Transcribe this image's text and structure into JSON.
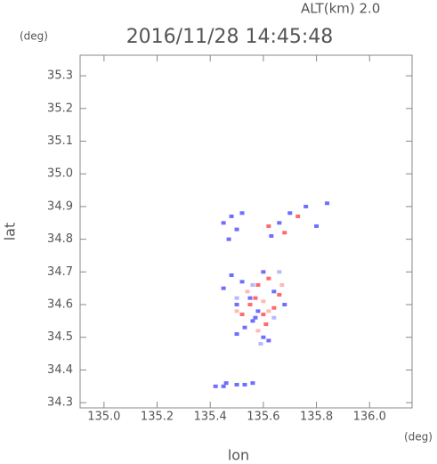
{
  "chart_data": {
    "type": "scatter",
    "title": "2016/11/28 14:45:48",
    "subtitle": "ALT(km) 2.0",
    "y_unit": "(deg)",
    "x_unit": "(deg)",
    "xlabel": "lon",
    "ylabel": "lat",
    "xlim": [
      134.91,
      136.16
    ],
    "ylim": [
      34.284,
      35.363
    ],
    "xticks": [
      {
        "value": 135.0,
        "label": "135.0"
      },
      135.2,
      135.4,
      135.6,
      135.8,
      {
        "value": 136.0,
        "label": "136.0"
      }
    ],
    "yticks": [
      34.3,
      34.4,
      34.5,
      34.6,
      34.7,
      34.8,
      34.9,
      {
        "value": 35.0,
        "label": "35.0"
      },
      35.1,
      35.2,
      35.3
    ],
    "series": [
      {
        "color": "#6f6fff",
        "x": [
          135.45,
          135.48,
          135.5,
          135.52,
          135.47,
          135.63,
          135.66,
          135.7,
          135.76,
          135.84,
          135.8,
          135.45,
          135.48,
          135.52,
          135.55,
          135.5,
          135.6,
          135.64,
          135.68,
          135.57,
          135.53,
          135.6,
          135.62,
          135.56,
          135.5,
          135.58,
          135.42,
          135.45,
          135.5,
          135.46,
          135.53,
          135.56
        ],
        "y": [
          34.85,
          34.87,
          34.83,
          34.88,
          34.8,
          34.81,
          34.85,
          34.88,
          34.9,
          34.91,
          34.84,
          34.65,
          34.69,
          34.67,
          34.62,
          34.6,
          34.7,
          34.64,
          34.6,
          34.56,
          34.53,
          34.5,
          34.49,
          34.55,
          34.51,
          34.58,
          34.35,
          34.35,
          34.355,
          34.36,
          34.355,
          34.36
        ]
      },
      {
        "color": "#ff6a6a",
        "x": [
          135.62,
          135.68,
          135.73,
          135.58,
          135.62,
          135.66,
          135.55,
          135.6,
          135.64,
          135.52,
          135.57,
          135.61
        ],
        "y": [
          34.84,
          34.82,
          34.87,
          34.66,
          34.68,
          34.63,
          34.6,
          34.57,
          34.59,
          34.57,
          34.62,
          34.54
        ]
      },
      {
        "color": "#ffb8b8",
        "x": [
          135.54,
          135.6,
          135.67,
          135.5,
          135.58,
          135.62
        ],
        "y": [
          34.64,
          34.61,
          34.66,
          34.58,
          34.52,
          34.58
        ]
      },
      {
        "color": "#b8b8ff",
        "x": [
          135.56,
          135.64,
          135.5,
          135.66,
          135.59
        ],
        "y": [
          34.66,
          34.56,
          34.62,
          34.7,
          34.48
        ]
      }
    ]
  }
}
